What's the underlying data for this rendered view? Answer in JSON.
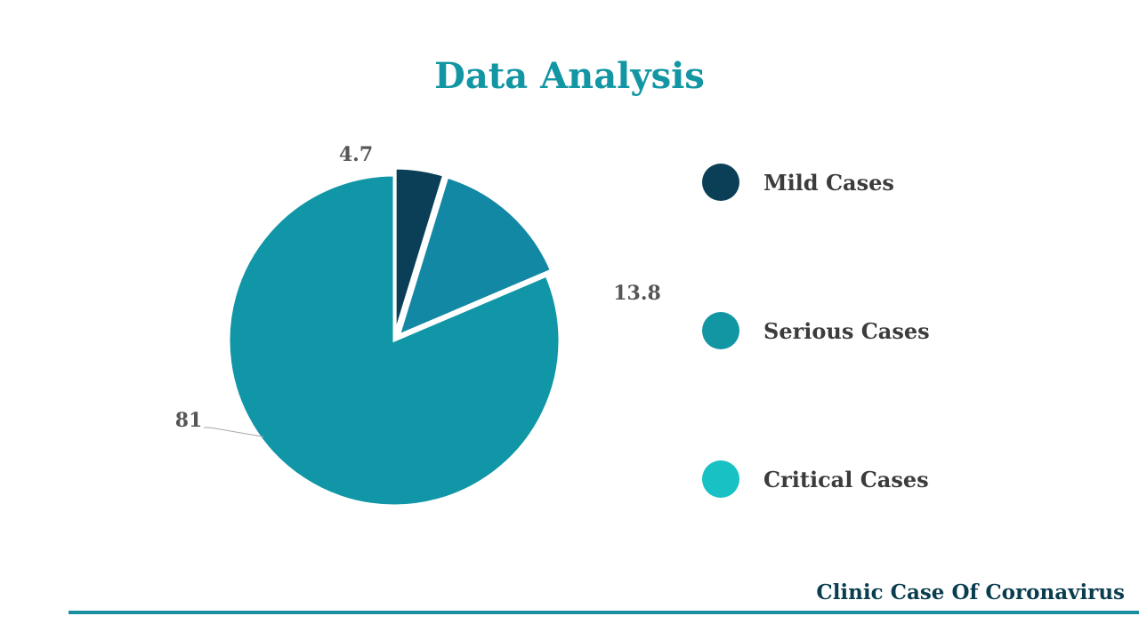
{
  "slide": {
    "title": "Data Analysis",
    "footer": "Clinic Case Of Coronavirus"
  },
  "colors": {
    "title": "#1296a4",
    "mild": "#0a3f57",
    "serious": "#1288a4",
    "critical": "#1096a6",
    "legend_critical": "#17c1c4",
    "footer_text": "#0a3d4f",
    "footer_line": "#1a8fa0"
  },
  "chart_data": {
    "type": "pie",
    "categories": [
      "Mild Cases",
      "Serious Cases",
      "Critical Cases"
    ],
    "values": [
      4.7,
      13.8,
      81
    ],
    "data_labels": [
      "4.7",
      "13.8",
      "81"
    ],
    "legend": {
      "placement": "right",
      "entries": [
        {
          "label": "Mild Cases",
          "color": "#0a3f57"
        },
        {
          "label": "Serious Cases",
          "color": "#1296a4"
        },
        {
          "label": "Critical Cases",
          "color": "#17c1c4"
        }
      ]
    }
  }
}
